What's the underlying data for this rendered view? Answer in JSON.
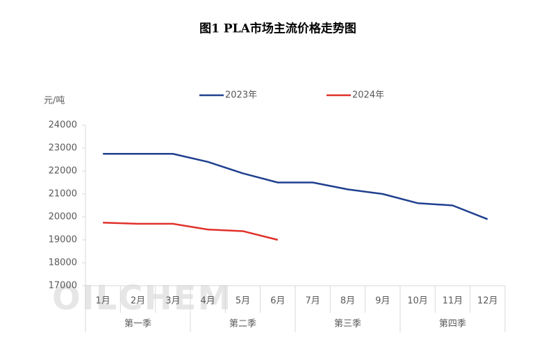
{
  "chart_data": {
    "type": "line",
    "title": "图1   PLA市场主流价格走势图",
    "y_label": "元/吨",
    "watermark": "OILCHEM",
    "categories": [
      "1月",
      "2月",
      "3月",
      "4月",
      "5月",
      "6月",
      "7月",
      "8月",
      "9月",
      "10月",
      "11月",
      "12月"
    ],
    "category_groups": [
      "第一季",
      "第二季",
      "第三季",
      "第四季"
    ],
    "series": [
      {
        "name": "2023年",
        "color": "#1f3f8f",
        "values": [
          22750,
          22750,
          22750,
          22400,
          21900,
          21500,
          21500,
          21200,
          21000,
          20600,
          20500,
          19900
        ]
      },
      {
        "name": "2024年",
        "color": "#e0312a",
        "values": [
          19750,
          19700,
          19700,
          19450,
          19380,
          19000,
          null,
          null,
          null,
          null,
          null,
          null
        ]
      }
    ],
    "ylim": [
      17000,
      24000
    ],
    "yticks": [
      17000,
      18000,
      19000,
      20000,
      21000,
      22000,
      23000,
      24000
    ],
    "grid": false,
    "legend": "top"
  }
}
